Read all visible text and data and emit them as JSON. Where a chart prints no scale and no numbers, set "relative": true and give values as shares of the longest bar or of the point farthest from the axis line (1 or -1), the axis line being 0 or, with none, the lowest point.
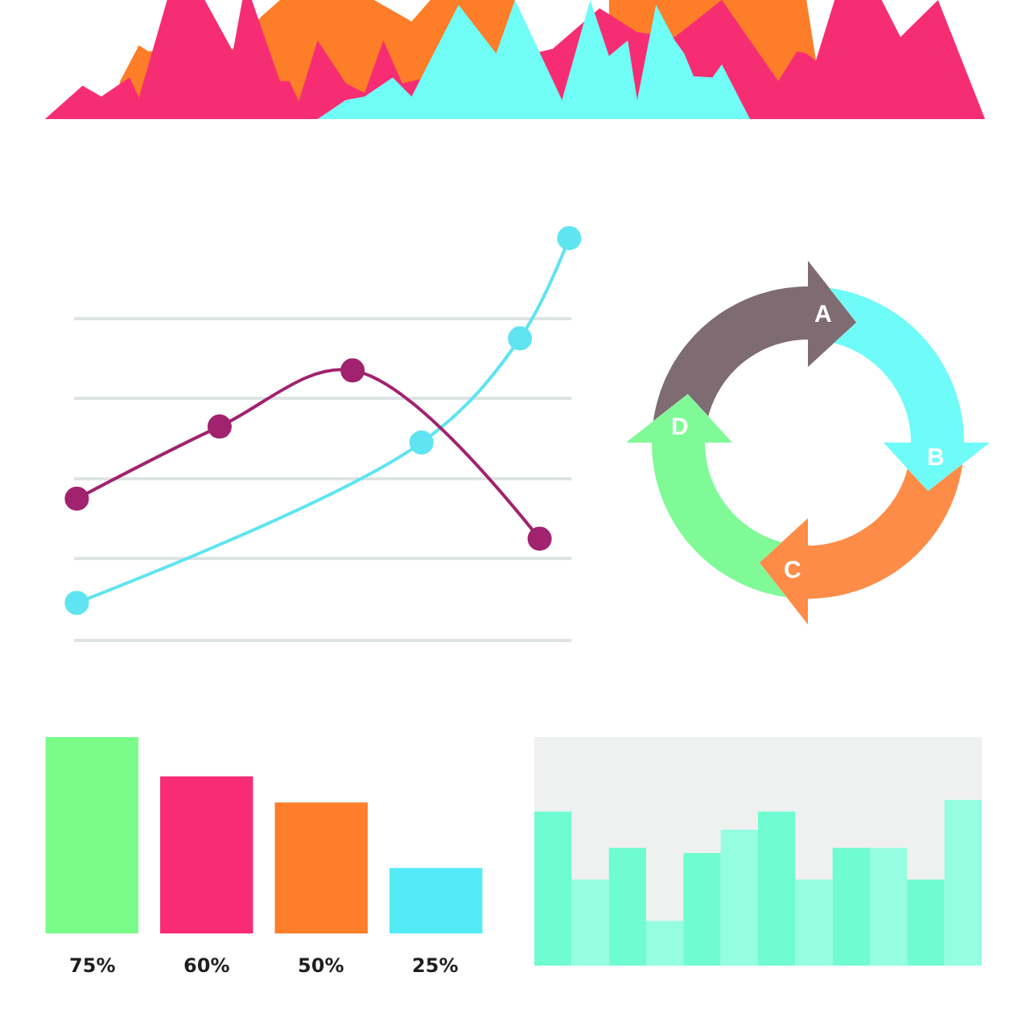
{
  "chart_data": [
    {
      "type": "area",
      "relative": true,
      "tick_labels": false,
      "categories": [
        null,
        null,
        null,
        null,
        null,
        null,
        null,
        null,
        null,
        null,
        null,
        null,
        null,
        null,
        null,
        null,
        null,
        null,
        null,
        null,
        null,
        null,
        null,
        null,
        null,
        null,
        null,
        null,
        null,
        null,
        null,
        null,
        null,
        null,
        null,
        null,
        null,
        null,
        null,
        null,
        null,
        null,
        null,
        null,
        null,
        null,
        null,
        null,
        null,
        null,
        null,
        null,
        null,
        null,
        null,
        null,
        null,
        null,
        null,
        null,
        null,
        null,
        null,
        null,
        null,
        null,
        null,
        null,
        null,
        null,
        null,
        null,
        null,
        null,
        null,
        null,
        null,
        null,
        null,
        null,
        null,
        null,
        null,
        null,
        null,
        null,
        null,
        null,
        null,
        null,
        null,
        null,
        null,
        null,
        null,
        null,
        null,
        null,
        null,
        null,
        null
      ],
      "series": [
        {
          "color": "#fd7d28",
          "values": [
            null,
            null,
            null,
            null,
            null,
            null,
            null,
            0,
            0.32,
            null,
            0.62,
            0.57,
            null,
            null,
            null,
            null,
            null,
            null,
            null,
            null,
            0.59,
            null,
            null,
            0.86,
            null,
            1,
            null,
            null,
            null,
            null,
            null,
            null,
            null,
            null,
            null,
            1,
            null,
            null,
            null,
            0.82,
            null,
            1,
            null,
            null,
            null,
            null,
            null,
            null,
            null,
            null,
            1,
            null,
            null,
            null,
            null,
            null,
            null,
            null,
            null,
            null,
            null,
            null,
            null,
            null,
            null,
            null,
            null,
            null,
            null,
            null,
            null,
            null,
            null,
            null,
            null,
            null,
            null,
            null,
            null,
            null,
            null,
            null,
            null,
            null,
            null,
            null,
            null,
            null,
            null,
            null,
            null,
            null,
            null,
            null,
            null,
            null,
            null,
            null,
            null,
            null,
            null
          ]
        },
        {
          "color": "#fd7d28",
          "values": [
            null,
            null,
            null,
            null,
            null,
            null,
            null,
            null,
            null,
            null,
            null,
            null,
            null,
            null,
            null,
            null,
            null,
            null,
            null,
            null,
            null,
            null,
            null,
            null,
            null,
            null,
            null,
            null,
            null,
            null,
            null,
            null,
            null,
            null,
            null,
            null,
            null,
            null,
            null,
            null,
            null,
            null,
            null,
            null,
            null,
            null,
            null,
            null,
            null,
            null,
            null,
            null,
            null,
            null,
            null,
            null,
            null,
            null,
            null,
            null,
            1,
            null,
            null,
            null,
            null,
            null,
            null,
            null,
            null,
            null,
            null,
            null,
            null,
            null,
            null,
            null,
            null,
            null,
            null,
            null,
            null,
            1,
            null,
            0,
            null,
            null,
            null,
            null,
            null,
            null,
            null,
            null,
            null,
            null,
            null,
            null,
            null,
            null,
            null,
            null,
            null
          ]
        },
        {
          "color": "#f72d74",
          "values": [
            0,
            null,
            null,
            null,
            0.28,
            null,
            0.19,
            null,
            null,
            0.35,
            0.18,
            null,
            null,
            1,
            null,
            null,
            null,
            1,
            null,
            null,
            0.57,
            1,
            1,
            null,
            null,
            0.32,
            0.32,
            0.15,
            null,
            0.66,
            null,
            null,
            0.3,
            null,
            0.22,
            null,
            0.66,
            null,
            0.3,
            null,
            null,
            null,
            null,
            null,
            null,
            null,
            null,
            null,
            null,
            null,
            null,
            null,
            null,
            null,
            0.59,
            null,
            null,
            null,
            null,
            0.93,
            null,
            null,
            null,
            0.73,
            null,
            null,
            null,
            0.69,
            null,
            null,
            null,
            null,
            1,
            null,
            null,
            null,
            null,
            null,
            0.32,
            null,
            0.57,
            0.55,
            0.49,
            null,
            1,
            null,
            null,
            null,
            null,
            1,
            null,
            0.69,
            null,
            null,
            null,
            1,
            null,
            null,
            null,
            null,
            0
          ]
        },
        {
          "color": "#6ffdf6",
          "values": [
            null,
            null,
            null,
            null,
            null,
            null,
            null,
            null,
            null,
            null,
            null,
            null,
            null,
            null,
            null,
            null,
            null,
            null,
            null,
            null,
            null,
            null,
            null,
            null,
            null,
            null,
            null,
            null,
            null,
            0,
            null,
            null,
            0.16,
            null,
            0.19,
            null,
            null,
            0.35,
            null,
            0.19,
            null,
            null,
            null,
            null,
            0.96,
            null,
            null,
            null,
            0.55,
            null,
            1,
            null,
            null,
            null,
            null,
            0.16,
            null,
            null,
            1,
            null,
            0.53,
            null,
            0.66,
            0.16,
            null,
            0.96,
            null,
            0.66,
            0.55,
            0.36,
            null,
            0.35,
            0.46,
            null,
            null,
            0,
            null,
            null,
            null,
            null,
            null,
            null,
            null,
            null,
            null,
            null,
            null,
            null,
            null,
            null,
            null,
            null,
            null,
            null,
            null,
            null,
            null,
            null,
            null,
            null,
            null
          ]
        }
      ]
    },
    {
      "type": "line",
      "relative": true,
      "tick_labels": false,
      "grid": "y",
      "marker": "circle",
      "categories": [
        null,
        null,
        null,
        null,
        null,
        null,
        null,
        null,
        null,
        null,
        null,
        null,
        null,
        null,
        null,
        null,
        null,
        null,
        null,
        null,
        null,
        null,
        null,
        null,
        null,
        null,
        null,
        null,
        null,
        null,
        null,
        null,
        null,
        null,
        null,
        null,
        null,
        null,
        null,
        null,
        null,
        null,
        null,
        null,
        null,
        null,
        null,
        null,
        null,
        null,
        null,
        null,
        null,
        null,
        null,
        null,
        null,
        null,
        null,
        null,
        null,
        null,
        null,
        null,
        null,
        null,
        null,
        null,
        null,
        null,
        null,
        null,
        null,
        null,
        null,
        null,
        null,
        null,
        null,
        null,
        null,
        null,
        null,
        null,
        null,
        null,
        null,
        null,
        null,
        null,
        null,
        null,
        null,
        null,
        null,
        null,
        null,
        null,
        null,
        null,
        null
      ],
      "series": [
        {
          "color": "#5fe4f1",
          "values": [
            0.09,
            null,
            null,
            null,
            null,
            null,
            null,
            null,
            null,
            null,
            null,
            null,
            null,
            null,
            null,
            null,
            null,
            null,
            null,
            null,
            null,
            null,
            null,
            null,
            null,
            null,
            null,
            null,
            null,
            null,
            null,
            null,
            null,
            null,
            null,
            null,
            null,
            null,
            null,
            null,
            null,
            null,
            null,
            null,
            null,
            null,
            null,
            null,
            null,
            null,
            null,
            null,
            null,
            null,
            null,
            null,
            null,
            null,
            null,
            null,
            null,
            null,
            null,
            null,
            null,
            null,
            null,
            null,
            null,
            null,
            0.49,
            null,
            null,
            null,
            null,
            null,
            null,
            null,
            null,
            null,
            null,
            null,
            null,
            null,
            null,
            null,
            null,
            null,
            null,
            null,
            0.75,
            null,
            null,
            null,
            null,
            null,
            null,
            null,
            null,
            null,
            1
          ]
        },
        {
          "color": "#a1226f",
          "values": [
            0.35,
            null,
            null,
            null,
            null,
            null,
            null,
            null,
            null,
            null,
            null,
            null,
            null,
            null,
            null,
            null,
            null,
            null,
            null,
            null,
            null,
            null,
            null,
            null,
            null,
            null,
            null,
            null,
            null,
            0.53,
            null,
            null,
            null,
            null,
            null,
            null,
            null,
            null,
            null,
            null,
            null,
            null,
            null,
            null,
            null,
            null,
            null,
            null,
            null,
            null,
            null,
            null,
            null,
            null,
            null,
            null,
            0.67,
            null,
            null,
            null,
            null,
            null,
            null,
            null,
            null,
            null,
            null,
            null,
            null,
            null,
            null,
            null,
            null,
            null,
            null,
            null,
            null,
            null,
            null,
            null,
            null,
            null,
            null,
            null,
            null,
            null,
            null,
            null,
            null,
            null,
            null,
            null,
            null,
            null,
            0.25,
            null,
            null,
            null,
            null,
            null,
            null
          ]
        }
      ]
    },
    {
      "type": "other",
      "categories": [
        "A",
        "B",
        "C",
        "D"
      ],
      "colors": [
        "#7f6b72",
        "#6ffbf7",
        "#fd8c48",
        "#7ffa96"
      ]
    },
    {
      "type": "bar",
      "tick_labels": false,
      "categories": [
        null,
        null,
        null,
        null
      ],
      "values": [
        75,
        60,
        50,
        25
      ],
      "value_labels": [
        "75%",
        "60%",
        "50%",
        "25%"
      ],
      "colors": [
        "#79fc8a",
        "#f72c75",
        "#fe7e2a",
        "#52ebf6"
      ]
    },
    {
      "type": "bar",
      "relative": true,
      "tick_labels": false,
      "categories": [
        null,
        null,
        null,
        null,
        null,
        null,
        null,
        null,
        null,
        null,
        null,
        null
      ],
      "values": [
        0.93,
        0.52,
        0.71,
        0.27,
        0.68,
        0.82,
        0.93,
        0.52,
        0.71,
        0.71,
        0.52,
        1
      ],
      "colors": [
        "#6ffcd0",
        "#95fde0",
        "#6ffcd0",
        "#95fde0",
        "#6ffcd0",
        "#95fde0",
        "#6ffcd0",
        "#95fde0",
        "#6ffcd0",
        "#95fde0",
        "#6ffcd0",
        "#95fde0"
      ]
    }
  ]
}
